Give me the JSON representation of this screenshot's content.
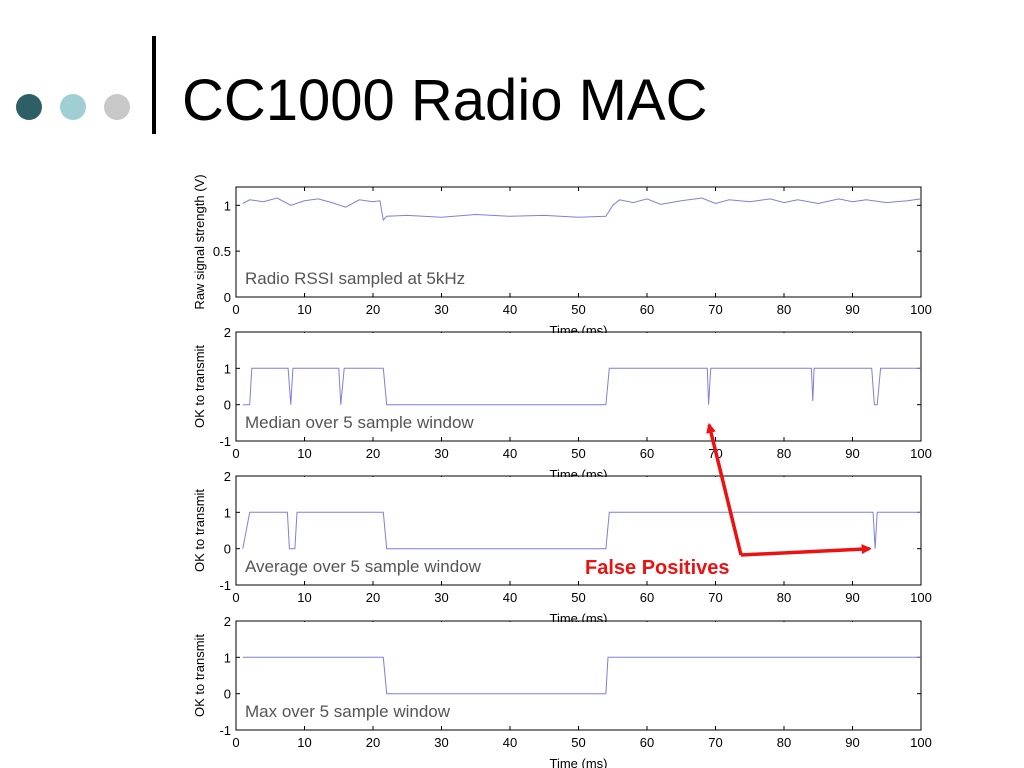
{
  "slide": {
    "title": "CC1000 Radio MAC",
    "bullet_colors": [
      "#2e5f66",
      "#9fcfd3",
      "#c8c8c8"
    ]
  },
  "chart_data": [
    {
      "type": "line",
      "title": "",
      "annotation": "Radio RSSI sampled at 5kHz",
      "xlabel": "Time (ms)",
      "ylabel": "Raw signal strength (V)",
      "xlim": [
        0,
        100
      ],
      "ylim": [
        0,
        1.2
      ],
      "xticks": [
        0,
        10,
        20,
        30,
        40,
        50,
        60,
        70,
        80,
        90,
        100
      ],
      "yticks": [
        0,
        0.5,
        1
      ],
      "line_color": "#7f7fe0",
      "series": [
        {
          "x": [
            1,
            2,
            4,
            6,
            8,
            10,
            12,
            14,
            16,
            18,
            20,
            21,
            21.5,
            22,
            25,
            30,
            35,
            40,
            45,
            50,
            54,
            55,
            56,
            58,
            60,
            62,
            65,
            68,
            70,
            72,
            75,
            78,
            80,
            82,
            85,
            88,
            90,
            92,
            95,
            98,
            100
          ],
          "y": [
            1.02,
            1.06,
            1.04,
            1.08,
            1.0,
            1.05,
            1.07,
            1.03,
            0.98,
            1.06,
            1.04,
            1.05,
            0.84,
            0.88,
            0.89,
            0.87,
            0.9,
            0.88,
            0.89,
            0.87,
            0.88,
            1.0,
            1.06,
            1.03,
            1.07,
            1.01,
            1.05,
            1.08,
            1.02,
            1.06,
            1.04,
            1.07,
            1.03,
            1.06,
            1.02,
            1.07,
            1.04,
            1.06,
            1.03,
            1.05,
            1.07
          ]
        }
      ]
    },
    {
      "type": "line",
      "title": "",
      "annotation": "Median over 5 sample window",
      "xlabel": "Time (ms)",
      "ylabel": "OK to transmit",
      "xlim": [
        0,
        100
      ],
      "ylim": [
        -1,
        2
      ],
      "xticks": [
        0,
        10,
        20,
        30,
        40,
        50,
        60,
        70,
        80,
        90,
        100
      ],
      "yticks": [
        -1,
        0,
        1,
        2
      ],
      "line_color": "#7f7fe0",
      "series": [
        {
          "x": [
            1,
            2,
            2.3,
            7.6,
            8,
            8.3,
            15,
            15.3,
            15.8,
            21.5,
            22,
            54,
            54.5,
            68.8,
            69,
            69.3,
            84,
            84.2,
            84.4,
            92.8,
            93.2,
            93.6,
            94.1,
            100
          ],
          "y": [
            0,
            0,
            1,
            1,
            0,
            1,
            1,
            0,
            1,
            1,
            0,
            0,
            1,
            1,
            0,
            1,
            1,
            0.1,
            1,
            1,
            0,
            0,
            1,
            1
          ]
        }
      ]
    },
    {
      "type": "line",
      "title": "",
      "annotation": "Average over 5 sample window",
      "xlabel": "Time (ms)",
      "ylabel": "OK to transmit",
      "xlim": [
        0,
        100
      ],
      "ylim": [
        -1,
        2
      ],
      "xticks": [
        0,
        10,
        20,
        30,
        40,
        50,
        60,
        70,
        80,
        90,
        100
      ],
      "yticks": [
        -1,
        0,
        1,
        2
      ],
      "line_color": "#7f7fe0",
      "series": [
        {
          "x": [
            1,
            2,
            7.5,
            7.8,
            8.6,
            8.9,
            21.5,
            22,
            54,
            54.5,
            93,
            93.3,
            93.6,
            100
          ],
          "y": [
            0,
            1,
            1,
            0,
            0,
            1,
            1,
            0,
            0,
            1,
            1,
            0,
            1,
            1
          ]
        }
      ]
    },
    {
      "type": "line",
      "title": "",
      "annotation": "Max over 5 sample window",
      "xlabel": "Time (ms)",
      "ylabel": "OK to transmit",
      "xlim": [
        0,
        100
      ],
      "ylim": [
        -1,
        2
      ],
      "xticks": [
        0,
        10,
        20,
        30,
        40,
        50,
        60,
        70,
        80,
        90,
        100
      ],
      "yticks": [
        -1,
        0,
        1,
        2
      ],
      "line_color": "#7f7fe0",
      "series": [
        {
          "x": [
            1,
            21.5,
            22,
            54,
            54.3,
            100
          ],
          "y": [
            1,
            1,
            0,
            0,
            1,
            1
          ]
        }
      ]
    }
  ],
  "callout": {
    "label": "False Positives",
    "color": "#ee1111",
    "points_to": [
      {
        "chart": 1,
        "x": 69,
        "y": -0.5
      },
      {
        "chart": 2,
        "x": 92.8,
        "y": 0
      }
    ]
  }
}
